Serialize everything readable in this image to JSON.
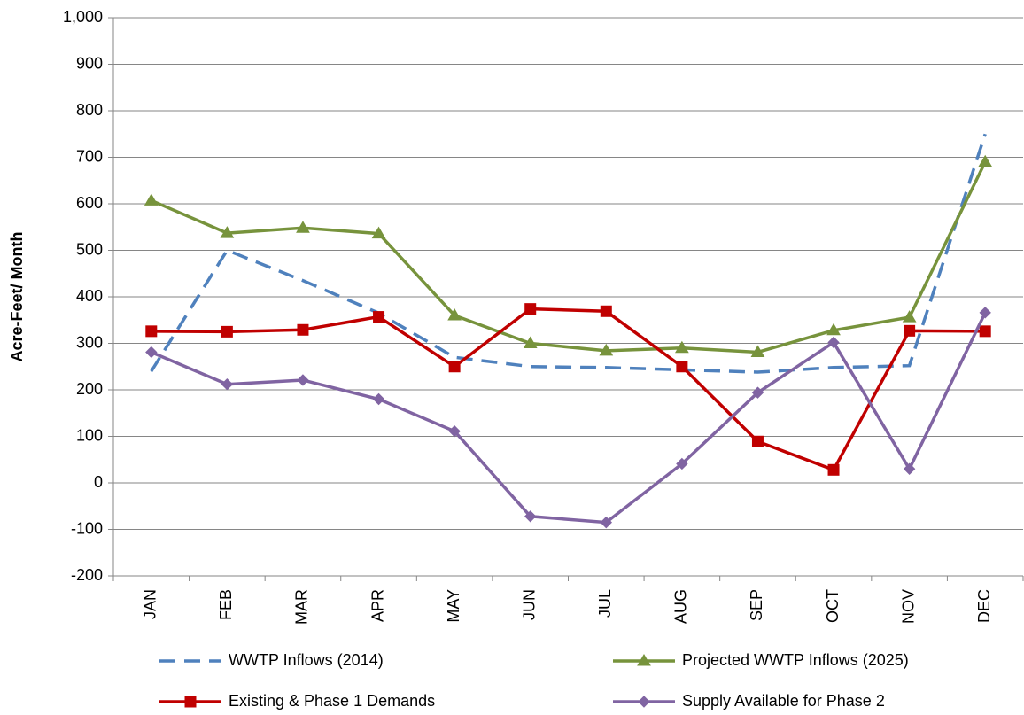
{
  "chart_data": {
    "type": "line",
    "y_label": "Acre-Feet/ Month",
    "categories": [
      "JAN",
      "FEB",
      "MAR",
      "APR",
      "MAY",
      "JUN",
      "JUL",
      "AUG",
      "SEP",
      "OCT",
      "NOV",
      "DEC"
    ],
    "series": [
      {
        "name": "WWTP Inflows (2014)",
        "color": "#4f81bd",
        "dash": true,
        "marker": null,
        "values": [
          240,
          500,
          435,
          365,
          270,
          250,
          248,
          243,
          238,
          248,
          252,
          750
        ]
      },
      {
        "name": "Projected WWTP Inflows (2025)",
        "color": "#77933c",
        "dash": false,
        "marker": "triangle",
        "values": [
          607,
          537,
          548,
          536,
          360,
          300,
          284,
          290,
          281,
          328,
          356,
          690
        ]
      },
      {
        "name": "Existing & Phase 1 Demands",
        "color": "#c00000",
        "dash": false,
        "marker": "square",
        "values": [
          326,
          325,
          329,
          357,
          250,
          374,
          369,
          250,
          89,
          28,
          327,
          326
        ]
      },
      {
        "name": "Supply Available for Phase 2",
        "color": "#8064a2",
        "dash": false,
        "marker": "diamond",
        "values": [
          281,
          212,
          221,
          180,
          111,
          -72,
          -85,
          41,
          194,
          302,
          30,
          366
        ]
      }
    ],
    "ylim": [
      -200,
      1000
    ],
    "yticks": [
      -200,
      -100,
      0,
      100,
      200,
      300,
      400,
      500,
      600,
      700,
      800,
      {
        "value": 900,
        "label": "900"
      },
      {
        "value": 1000,
        "label": "1,000"
      }
    ],
    "grid": true,
    "legend": "bottom"
  }
}
